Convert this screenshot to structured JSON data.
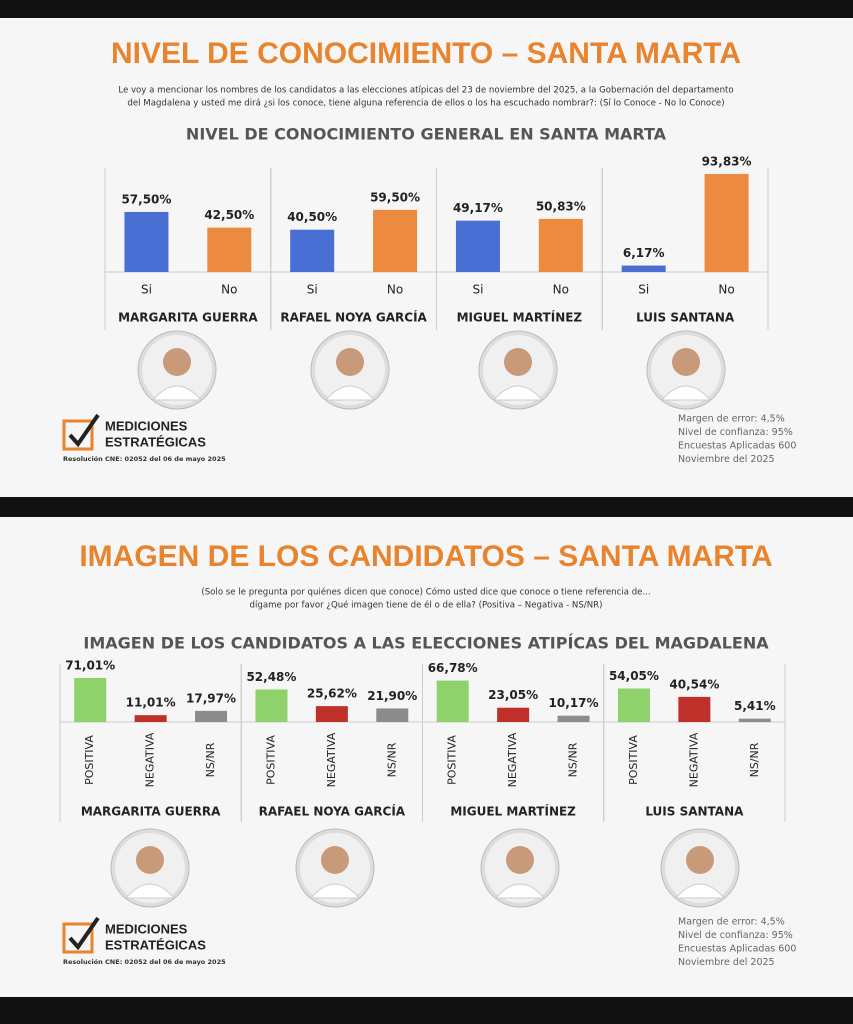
{
  "chart_data": [
    {
      "type": "bar",
      "heading": "NIVEL DE CONOCIMIENTO – SANTA MARTA",
      "question": [
        "Le voy a mencionar los nombres de los candidatos a las elecciones atípicas del 23 de noviembre del 2025, a la Gobernación del departamento",
        "del Magdalena y usted me dirá ¿si los conoce, tiene alguna referencia de ellos o los ha escuchado nombrar?: (Sí lo Conoce - No lo Conoce)"
      ],
      "title": "NIVEL DE CONOCIMIENTO GENERAL EN SANTA MARTA",
      "colors": [
        "#4a6fd4",
        "#ec8a3f"
      ],
      "groups": [
        {
          "name": "MARGARITA GUERRA",
          "categories": [
            "Si",
            "No"
          ],
          "values": [
            57.5,
            42.5
          ],
          "value_labels": [
            "57,50%",
            "42,50%"
          ]
        },
        {
          "name": "RAFAEL NOYA GARCÍA",
          "categories": [
            "Si",
            "No"
          ],
          "values": [
            40.5,
            59.5
          ],
          "value_labels": [
            "40,50%",
            "59,50%"
          ]
        },
        {
          "name": "MIGUEL MARTÍNEZ",
          "categories": [
            "Si",
            "No"
          ],
          "values": [
            49.17,
            50.83
          ],
          "value_labels": [
            "49,17%",
            "50,83%"
          ]
        },
        {
          "name": "LUIS SANTANA",
          "categories": [
            "Si",
            "No"
          ],
          "values": [
            6.17,
            93.83
          ],
          "value_labels": [
            "6,17%",
            "93,83%"
          ]
        }
      ],
      "logo": [
        "MEDICIONES",
        "ESTRATÉGICAS"
      ],
      "resolution": "Resolución CNE: 02052 del 06 de mayo 2025",
      "notes": [
        "Margen de error: 4,5%",
        "Nivel de confianza: 95%",
        "Encuestas Aplicadas 600",
        "Noviembre del 2025"
      ]
    },
    {
      "type": "bar",
      "heading": "IMAGEN DE LOS CANDIDATOS – SANTA MARTA",
      "question": [
        "(Solo se le pregunta por quiénes dicen que conoce) Cómo usted dice que conoce o tiene referencia de...",
        "dígame por favor ¿Qué imagen tiene de él o de ella? (Positiva – Negativa - NS/NR)"
      ],
      "title": "IMAGEN DE LOS CANDIDATOS A LAS ELECCIONES ATIPÍCAS DEL MAGDALENA",
      "colors": [
        "#8fd16a",
        "#c0302b",
        "#8c8c8c"
      ],
      "groups": [
        {
          "name": "MARGARITA GUERRA",
          "categories": [
            "POSITIVA",
            "NEGATIVA",
            "NS/NR"
          ],
          "values": [
            71.01,
            11.01,
            17.97
          ],
          "value_labels": [
            "71,01%",
            "11,01%",
            "17,97%"
          ]
        },
        {
          "name": "RAFAEL NOYA GARCÍA",
          "categories": [
            "POSITIVA",
            "NEGATIVA",
            "NS/NR"
          ],
          "values": [
            52.48,
            25.62,
            21.9
          ],
          "value_labels": [
            "52,48%",
            "25,62%",
            "21,90%"
          ]
        },
        {
          "name": "MIGUEL  MARTÍNEZ",
          "categories": [
            "POSITIVA",
            "NEGATIVA",
            "NS/NR"
          ],
          "values": [
            66.78,
            23.05,
            10.17
          ],
          "value_labels": [
            "66,78%",
            "23,05%",
            "10,17%"
          ]
        },
        {
          "name": "LUIS SANTANA",
          "categories": [
            "POSITIVA",
            "NEGATIVA",
            "NS/NR"
          ],
          "values": [
            54.05,
            40.54,
            5.41
          ],
          "value_labels": [
            "54,05%",
            "40,54%",
            "5,41%"
          ]
        }
      ],
      "logo": [
        "MEDICIONES",
        "ESTRATÉGICAS"
      ],
      "resolution": "Resolución CNE: 02052 del 06 de mayo 2025",
      "notes": [
        "Margen de error: 4,5%",
        "Nivel de confianza: 95%",
        "Encuestas Aplicadas 600",
        "Noviembre del 2025"
      ]
    }
  ]
}
